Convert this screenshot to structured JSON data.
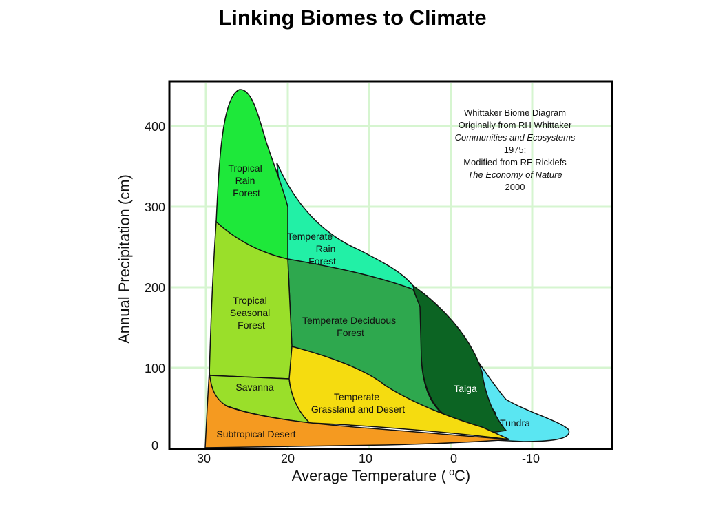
{
  "title": "Linking Biomes to Climate",
  "axes": {
    "x_label": "Average Temperature (",
    "x_unit_deg": "o",
    "x_unit_tail": "C)",
    "y_label": "Annual Precipitation (cm)",
    "x_ticks": [
      "30",
      "20",
      "10",
      "0",
      "-10"
    ],
    "y_ticks": [
      "400",
      "300",
      "200",
      "100",
      "0"
    ]
  },
  "note": {
    "line1": "Whittaker Biome Diagram",
    "line2": "Originally from RH Whittaker",
    "line3": "Communities and Ecosystems",
    "line4": "1975;",
    "line5": "Modified from RE Ricklefs",
    "line6": "The Economy of Nature",
    "line7": "2000"
  },
  "biomes": {
    "tropical_rain_forest": [
      "Tropical",
      "Rain",
      "Forest"
    ],
    "temperate_rain_forest": [
      "Temperate",
      "Rain",
      "Forest"
    ],
    "tropical_seasonal_forest": [
      "Tropical",
      "Seasonal",
      "Forest"
    ],
    "temperate_deciduous_forest": [
      "Temperate Deciduous",
      "Forest"
    ],
    "savanna": "Savanna",
    "temperate_grassland": [
      "Temperate",
      "Grassland and Desert"
    ],
    "taiga": "Taiga",
    "tundra": "Tundra",
    "subtropical_desert": "Subtropical Desert"
  },
  "colors": {
    "tropical_rain_forest": "#1ee83a",
    "temperate_rain_forest": "#22f0a6",
    "tropical_seasonal_forest": "#9adf2a",
    "temperate_deciduous_forest": "#2ea84e",
    "savanna": "#9adf2a",
    "temperate_grassland": "#f5dc10",
    "taiga": "#0c6423",
    "tundra": "#5ae6f2",
    "subtropical_desert": "#f59a20"
  }
}
